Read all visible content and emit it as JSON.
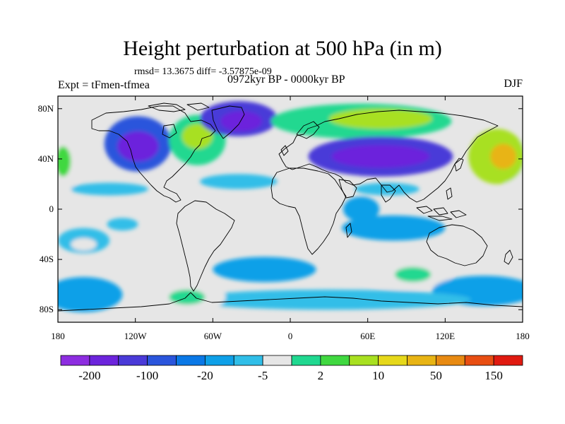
{
  "header": {
    "title": "Height perturbation at 500 hPa (in m)",
    "stats": "rmsd= 13.3675 diff= -3.57875e-09",
    "experiment": "Expt = tFmen-tfmea",
    "period": "0972kyr BP - 0000kyr BP",
    "season": "DJF"
  },
  "map": {
    "projection": "cylindrical-equidistant",
    "lon_range": [
      -180,
      180
    ],
    "lat_range": [
      -90,
      90
    ],
    "lon_ticks": [
      {
        "value": -180,
        "label": "180"
      },
      {
        "value": -120,
        "label": "120W"
      },
      {
        "value": -60,
        "label": "60W"
      },
      {
        "value": 0,
        "label": "0"
      },
      {
        "value": 60,
        "label": "60E"
      },
      {
        "value": 120,
        "label": "120E"
      },
      {
        "value": 180,
        "label": "180"
      }
    ],
    "lat_ticks": [
      {
        "value": 80,
        "label": "80N"
      },
      {
        "value": 40,
        "label": "40N"
      },
      {
        "value": 0,
        "label": "0"
      },
      {
        "value": -40,
        "label": "40S"
      },
      {
        "value": -80,
        "label": "80S"
      }
    ],
    "background_color": "#e6e6e6",
    "coastline_color": "#000000",
    "anomaly_regions": [
      {
        "name": "central-pacific-high",
        "lon": -176,
        "lat": 36,
        "rlon": 14,
        "rlat": 22,
        "level": 7
      },
      {
        "name": "central-pacific-high-core",
        "lon": -176,
        "lat": 38,
        "rlon": 6,
        "rlat": 12,
        "level": 9
      },
      {
        "name": "dateline-high-east",
        "lon": 172,
        "lat": 38,
        "rlon": 12,
        "rlat": 20,
        "level": 7
      },
      {
        "name": "west-pacific-high",
        "lon": 160,
        "lat": 42,
        "rlon": 22,
        "rlat": 22,
        "level": 10
      },
      {
        "name": "west-pacific-high-core",
        "lon": 165,
        "lat": 42,
        "rlon": 10,
        "rlat": 10,
        "level": 12
      },
      {
        "name": "north-america-low",
        "lon": -118,
        "lat": 52,
        "rlon": 26,
        "rlat": 22,
        "level": 3
      },
      {
        "name": "north-america-low-core",
        "lon": -118,
        "lat": 50,
        "rlon": 16,
        "rlat": 12,
        "level": 1
      },
      {
        "name": "north-atlantic-high",
        "lon": -72,
        "lat": 55,
        "rlon": 22,
        "rlat": 20,
        "level": 8
      },
      {
        "name": "north-atlantic-high-core",
        "lon": -72,
        "lat": 58,
        "rlon": 12,
        "rlat": 10,
        "level": 10
      },
      {
        "name": "greenland-low",
        "lon": -40,
        "lat": 72,
        "rlon": 30,
        "rlat": 14,
        "level": 2
      },
      {
        "name": "greenland-low-core",
        "lon": -38,
        "lat": 70,
        "rlon": 16,
        "rlat": 8,
        "level": 1
      },
      {
        "name": "eurasia-arctic-high",
        "lon": 55,
        "lat": 70,
        "rlon": 70,
        "rlat": 14,
        "level": 8
      },
      {
        "name": "eurasia-arctic-high-core",
        "lon": 70,
        "lat": 72,
        "rlon": 40,
        "rlat": 8,
        "level": 10
      },
      {
        "name": "siberia-low",
        "lon": 70,
        "lat": 42,
        "rlon": 56,
        "rlat": 16,
        "level": 2
      },
      {
        "name": "siberia-low-core",
        "lon": 70,
        "lat": 42,
        "rlon": 38,
        "rlat": 9,
        "level": 1
      },
      {
        "name": "subtropic-band-atlantic",
        "lon": -40,
        "lat": 22,
        "rlon": 30,
        "rlat": 6,
        "level": 6
      },
      {
        "name": "subtropic-band-pacific",
        "lon": -140,
        "lat": 16,
        "rlon": 30,
        "rlat": 5,
        "level": 6
      },
      {
        "name": "subtropic-band-asia",
        "lon": 75,
        "lat": 16,
        "rlon": 25,
        "rlat": 5,
        "level": 6
      },
      {
        "name": "arabian-low",
        "lon": 55,
        "lat": 0,
        "rlon": 14,
        "rlat": 10,
        "level": 5
      },
      {
        "name": "indian-ocean-low",
        "lon": 80,
        "lat": -15,
        "rlon": 40,
        "rlat": 10,
        "level": 5
      },
      {
        "name": "east-pacific-patch",
        "lon": -130,
        "lat": -12,
        "rlon": 12,
        "rlat": 5,
        "level": 6
      },
      {
        "name": "south-pacific-high",
        "lon": -160,
        "lat": -25,
        "rlon": 20,
        "rlat": 10,
        "level": 6
      },
      {
        "name": "south-pacific-high-core",
        "lon": -160,
        "lat": -28,
        "rlon": 10,
        "rlat": 5,
        "level": 7
      },
      {
        "name": "south-atlantic-low",
        "lon": -20,
        "lat": -48,
        "rlon": 40,
        "rlat": 10,
        "level": 5
      },
      {
        "name": "south-indian-high",
        "lon": 90,
        "lat": -52,
        "rlon": 35,
        "rlat": 12,
        "level": 7
      },
      {
        "name": "south-indian-high-core",
        "lon": 95,
        "lat": -52,
        "rlon": 14,
        "rlat": 6,
        "level": 8
      },
      {
        "name": "southern-ocean-low-west",
        "lon": -160,
        "lat": -68,
        "rlon": 30,
        "rlat": 14,
        "level": 5
      },
      {
        "name": "southern-ocean-low-east",
        "lon": 150,
        "lat": -65,
        "rlon": 40,
        "rlat": 12,
        "level": 5
      },
      {
        "name": "southern-ocean-band",
        "lon": 30,
        "lat": -72,
        "rlon": 110,
        "rlat": 8,
        "level": 6
      },
      {
        "name": "drake-high",
        "lon": -80,
        "lat": -70,
        "rlon": 30,
        "rlat": 12,
        "level": 7
      },
      {
        "name": "drake-high-core",
        "lon": -80,
        "lat": -70,
        "rlon": 14,
        "rlat": 6,
        "level": 8
      }
    ]
  },
  "colorbar": {
    "colors": [
      "#8d2de0",
      "#6c24dc",
      "#4a3ad8",
      "#2a55dc",
      "#0a78e6",
      "#0ea0e8",
      "#30bee8",
      "#e6e6e6",
      "#20d890",
      "#40d840",
      "#a8e020",
      "#e6d81a",
      "#e8b414",
      "#e88a12",
      "#e84e12",
      "#e01a10"
    ],
    "tick_labels": [
      {
        "label": "-200",
        "boundary": 2
      },
      {
        "label": "-100",
        "boundary": 4
      },
      {
        "label": "-20",
        "boundary": 6
      },
      {
        "label": "-5",
        "boundary": 8
      },
      {
        "label": "2",
        "boundary": 10
      },
      {
        "label": "10",
        "boundary": 12
      },
      {
        "label": "50",
        "boundary": 14
      },
      {
        "label": "150",
        "boundary": 16
      }
    ]
  }
}
